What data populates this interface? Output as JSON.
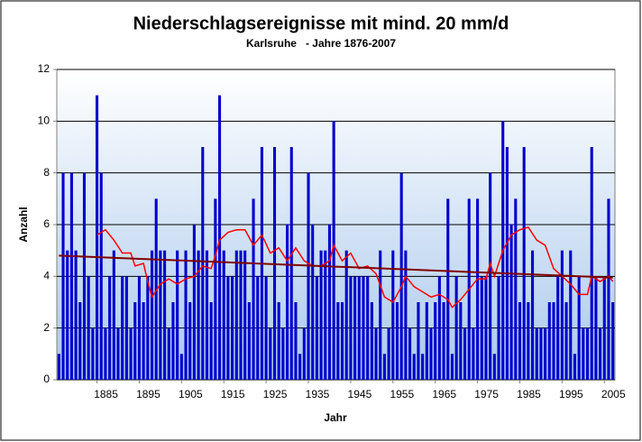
{
  "chart_data": {
    "type": "bar",
    "title": "Niederschlagsereignisse mit mind. 20 mm/d",
    "subtitle": "Karlsruhe   - Jahre 1876-2007",
    "x_label": "Jahr",
    "y_label": "Anzahl",
    "x": [
      1876,
      1877,
      1878,
      1879,
      1880,
      1881,
      1882,
      1883,
      1884,
      1885,
      1886,
      1887,
      1888,
      1889,
      1890,
      1891,
      1892,
      1893,
      1894,
      1895,
      1896,
      1897,
      1898,
      1899,
      1900,
      1901,
      1902,
      1903,
      1904,
      1905,
      1906,
      1907,
      1908,
      1909,
      1910,
      1911,
      1912,
      1913,
      1914,
      1915,
      1916,
      1917,
      1918,
      1919,
      1920,
      1921,
      1922,
      1923,
      1924,
      1925,
      1926,
      1927,
      1928,
      1929,
      1930,
      1931,
      1932,
      1933,
      1934,
      1935,
      1936,
      1937,
      1938,
      1939,
      1940,
      1941,
      1942,
      1943,
      1944,
      1945,
      1946,
      1947,
      1948,
      1949,
      1950,
      1951,
      1952,
      1953,
      1954,
      1955,
      1956,
      1957,
      1958,
      1959,
      1960,
      1961,
      1962,
      1963,
      1964,
      1965,
      1966,
      1967,
      1968,
      1969,
      1970,
      1971,
      1972,
      1973,
      1974,
      1975,
      1976,
      1977,
      1978,
      1979,
      1980,
      1981,
      1982,
      1983,
      1984,
      1985,
      1986,
      1987,
      1988,
      1989,
      1990,
      1991,
      1992,
      1993,
      1994,
      1995,
      1996,
      1997,
      1998,
      1999,
      2000,
      2001,
      2002,
      2003,
      2004,
      2005,
      2006,
      2007
    ],
    "series": [
      {
        "type": "bar",
        "color": "#0000cc",
        "values": [
          1,
          8,
          5,
          8,
          5,
          3,
          8,
          4,
          2,
          11,
          8,
          2,
          4,
          5,
          2,
          4,
          4,
          2,
          3,
          4,
          3,
          4,
          5,
          7,
          5,
          5,
          2,
          3,
          5,
          1,
          5,
          3,
          6,
          5,
          9,
          5,
          3,
          7,
          11,
          5,
          4,
          4,
          5,
          5,
          5,
          3,
          7,
          4,
          9,
          4,
          2,
          9,
          3,
          2,
          6,
          9,
          3,
          1,
          2,
          8,
          6,
          4,
          5,
          5,
          6,
          10,
          3,
          3,
          5,
          4,
          4,
          4,
          4,
          4,
          3,
          2,
          5,
          1,
          2,
          5,
          3,
          8,
          5,
          2,
          1,
          3,
          1,
          3,
          2,
          3,
          4,
          3,
          7,
          1,
          4,
          3,
          2,
          7,
          2,
          7,
          4,
          4,
          8,
          1,
          4,
          10,
          9,
          6,
          7,
          3,
          9,
          3,
          5,
          2,
          2,
          2,
          3,
          3,
          4,
          5,
          3,
          5,
          1,
          4,
          2,
          2,
          9,
          4,
          2,
          4,
          7,
          3
        ]
      },
      {
        "type": "line",
        "color": "#ff0000",
        "x": [
          1885,
          1887,
          1889,
          1891,
          1893,
          1894,
          1896,
          1897,
          1898,
          1900,
          1902,
          1904,
          1906,
          1908,
          1910,
          1912,
          1913,
          1914,
          1916,
          1918,
          1920,
          1922,
          1924,
          1926,
          1928,
          1930,
          1932,
          1934,
          1936,
          1938,
          1940,
          1941,
          1943,
          1945,
          1947,
          1949,
          1951,
          1953,
          1955,
          1957,
          1958,
          1960,
          1962,
          1964,
          1966,
          1968,
          1969,
          1971,
          1973,
          1975,
          1977,
          1978,
          1979,
          1981,
          1983,
          1985,
          1987,
          1989,
          1991,
          1993,
          1995,
          1997,
          1999,
          2001,
          2002,
          2004,
          2006,
          2007
        ],
        "values": [
          5.6,
          5.8,
          5.4,
          4.9,
          4.9,
          4.4,
          4.5,
          3.8,
          3.2,
          3.7,
          3.9,
          3.7,
          3.9,
          4.0,
          4.4,
          4.3,
          4.8,
          5.4,
          5.7,
          5.8,
          5.8,
          5.2,
          5.6,
          4.9,
          5.1,
          4.6,
          5.1,
          4.6,
          4.4,
          4.4,
          4.6,
          5.2,
          4.6,
          4.9,
          4.3,
          4.4,
          4.1,
          3.2,
          3.0,
          3.6,
          4.0,
          3.6,
          3.4,
          3.2,
          3.3,
          3.1,
          2.8,
          3.1,
          3.5,
          3.9,
          3.9,
          4.5,
          4.0,
          5.0,
          5.6,
          5.8,
          5.9,
          5.4,
          5.2,
          4.3,
          4.0,
          3.7,
          3.3,
          3.3,
          4.0,
          3.8,
          4.0,
          3.8
        ]
      },
      {
        "type": "line",
        "color": "#800000",
        "x": [
          1876,
          2007
        ],
        "values": [
          4.8,
          3.95
        ]
      }
    ],
    "xlim": [
      1875.5,
      2007.5
    ],
    "xticks": [
      1885,
      1895,
      1905,
      1915,
      1925,
      1935,
      1945,
      1955,
      1965,
      1975,
      1985,
      1995,
      2005
    ],
    "ylim": [
      0,
      12
    ],
    "yticks": [
      0,
      2,
      4,
      6,
      8,
      10,
      12
    ],
    "grid": true
  }
}
